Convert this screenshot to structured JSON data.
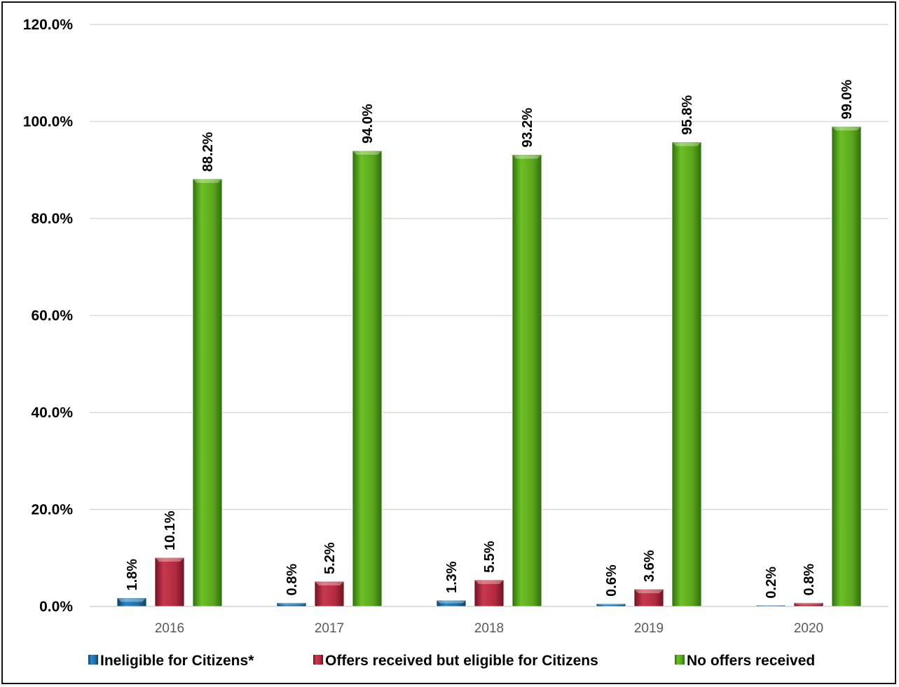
{
  "chart_data": {
    "type": "bar",
    "title": "",
    "xlabel": "",
    "ylabel": "",
    "categories": [
      "2016",
      "2017",
      "2018",
      "2019",
      "2020"
    ],
    "ylim": [
      0,
      120
    ],
    "ytick_labels": [
      "0.0%",
      "20.0%",
      "40.0%",
      "60.0%",
      "80.0%",
      "100.0%",
      "120.0%"
    ],
    "yticks": [
      0,
      20,
      40,
      60,
      80,
      100,
      120
    ],
    "grid": "horizontal",
    "legend_position": "bottom",
    "series": [
      {
        "name": "Ineligible for Citizens*",
        "color": "#1f6fa8",
        "values": [
          1.8,
          0.8,
          1.3,
          0.6,
          0.2
        ],
        "labels": [
          "1.8%",
          "0.8%",
          "1.3%",
          "0.6%",
          "0.2%"
        ]
      },
      {
        "name": "Offers received but eligible for Citizens",
        "color": "#b32a3f",
        "values": [
          10.1,
          5.2,
          5.5,
          3.6,
          0.8
        ],
        "labels": [
          "10.1%",
          "5.2%",
          "5.5%",
          "3.6%",
          "0.8%"
        ]
      },
      {
        "name": "No offers received",
        "color": "#5aa51c",
        "values": [
          88.2,
          94.0,
          93.2,
          95.8,
          99.0
        ],
        "labels": [
          "88.2%",
          "94.0%",
          "93.2%",
          "95.8%",
          "99.0%"
        ]
      }
    ]
  }
}
